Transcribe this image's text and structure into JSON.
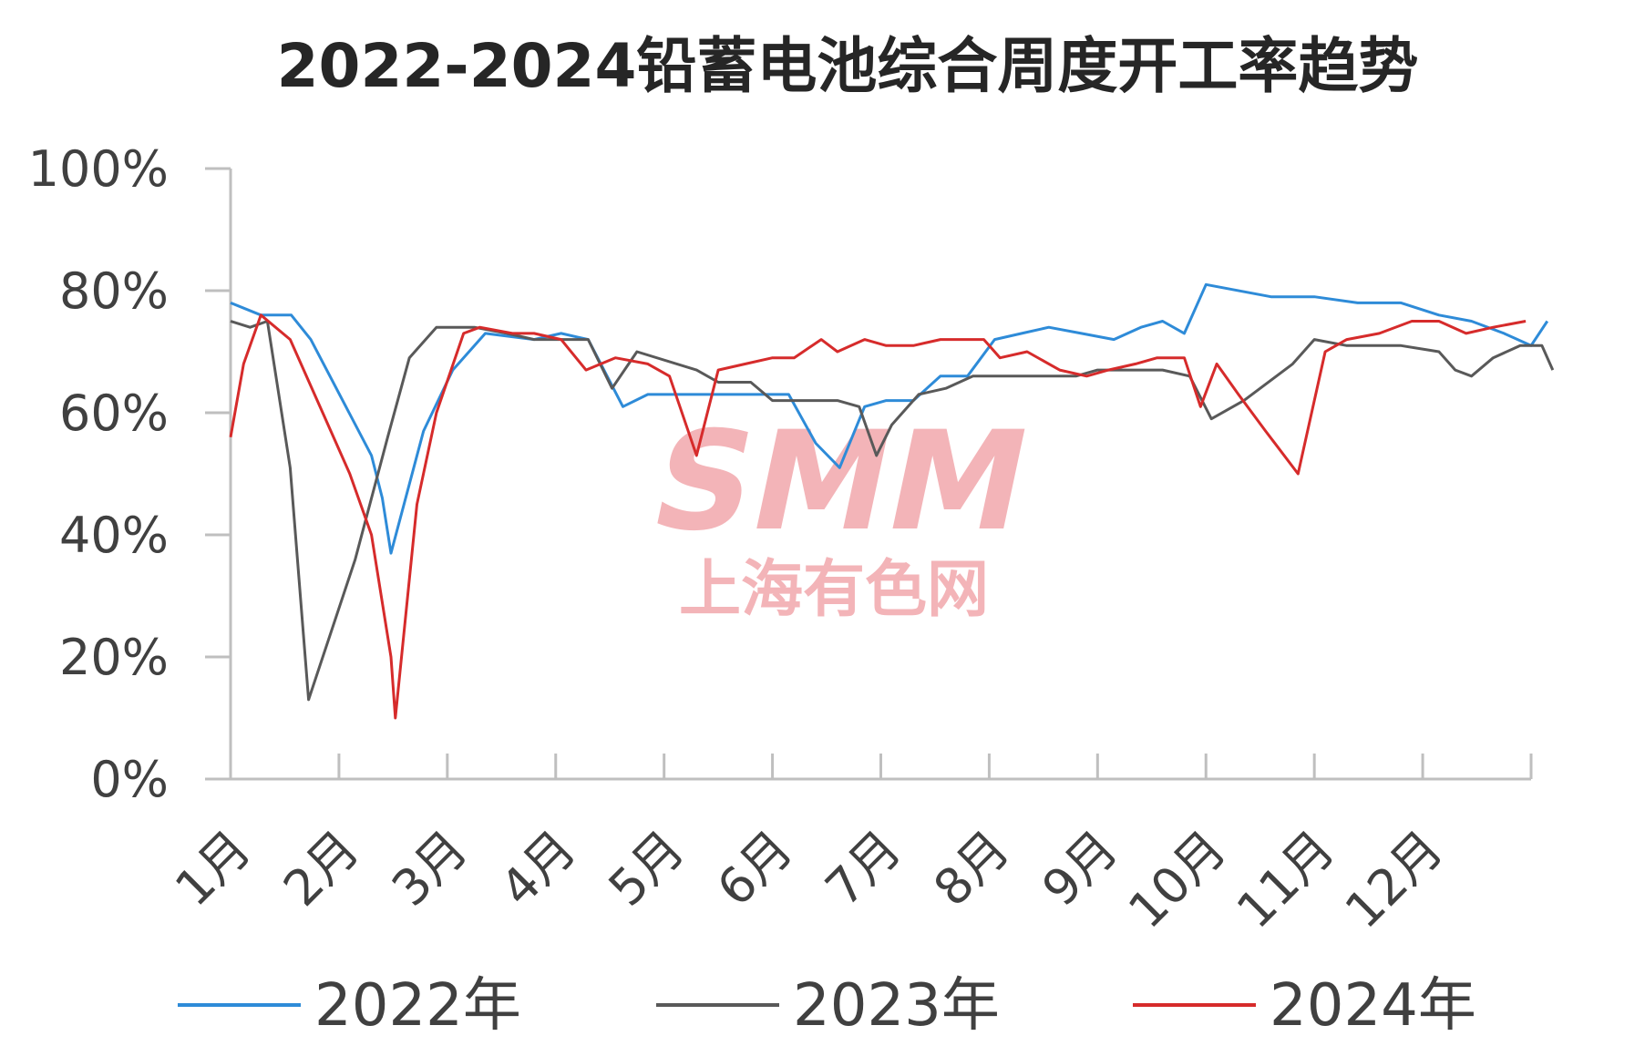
{
  "watermark": {
    "logo": "SMM",
    "text": "上海有色网"
  },
  "chart_data": {
    "type": "line",
    "title": "2022-2024铅蓄电池综合周度开工率趋势",
    "y_ticks": [
      "0%",
      "20%",
      "40%",
      "60%",
      "80%",
      "100%"
    ],
    "ylim": [
      0,
      100
    ],
    "x_range_months": [
      1,
      13
    ],
    "months": [
      "1月",
      "2月",
      "3月",
      "4月",
      "5月",
      "6月",
      "7月",
      "8月",
      "9月",
      "10月",
      "11月",
      "12月"
    ],
    "legend_position": "bottom",
    "series": [
      {
        "name": "2022年",
        "color": "#2e8bd8",
        "points": [
          [
            1.0,
            78
          ],
          [
            1.28,
            76
          ],
          [
            1.56,
            76
          ],
          [
            1.74,
            72
          ],
          [
            2.3,
            53
          ],
          [
            2.4,
            46
          ],
          [
            2.48,
            37
          ],
          [
            2.78,
            57
          ],
          [
            3.05,
            67
          ],
          [
            3.35,
            73
          ],
          [
            3.8,
            72
          ],
          [
            4.05,
            73
          ],
          [
            4.3,
            72
          ],
          [
            4.62,
            61
          ],
          [
            4.85,
            63
          ],
          [
            6.0,
            63
          ],
          [
            6.15,
            63
          ],
          [
            6.4,
            55
          ],
          [
            6.62,
            51
          ],
          [
            6.85,
            61
          ],
          [
            7.05,
            62
          ],
          [
            7.3,
            62
          ],
          [
            7.55,
            66
          ],
          [
            7.8,
            66
          ],
          [
            8.05,
            72
          ],
          [
            8.3,
            73
          ],
          [
            8.55,
            74
          ],
          [
            8.85,
            73
          ],
          [
            9.15,
            72
          ],
          [
            9.4,
            74
          ],
          [
            9.6,
            75
          ],
          [
            9.8,
            73
          ],
          [
            10.0,
            81
          ],
          [
            10.6,
            79
          ],
          [
            11.0,
            79
          ],
          [
            11.4,
            78
          ],
          [
            11.8,
            78
          ],
          [
            12.15,
            76
          ],
          [
            12.45,
            75
          ],
          [
            12.75,
            73
          ],
          [
            13.0,
            71
          ],
          [
            13.15,
            75
          ]
        ]
      },
      {
        "name": "2023年",
        "color": "#595959",
        "points": [
          [
            1.0,
            75
          ],
          [
            1.18,
            74
          ],
          [
            1.34,
            75
          ],
          [
            1.55,
            51
          ],
          [
            1.72,
            13
          ],
          [
            2.15,
            36
          ],
          [
            2.45,
            56
          ],
          [
            2.65,
            69
          ],
          [
            2.9,
            74
          ],
          [
            3.25,
            74
          ],
          [
            3.55,
            73
          ],
          [
            3.8,
            72
          ],
          [
            4.3,
            72
          ],
          [
            4.52,
            64
          ],
          [
            4.75,
            70
          ],
          [
            5.3,
            67
          ],
          [
            5.5,
            65
          ],
          [
            5.8,
            65
          ],
          [
            6.0,
            62
          ],
          [
            6.6,
            62
          ],
          [
            6.8,
            61
          ],
          [
            6.96,
            53
          ],
          [
            7.1,
            58
          ],
          [
            7.35,
            63
          ],
          [
            7.6,
            64
          ],
          [
            7.85,
            66
          ],
          [
            8.1,
            66
          ],
          [
            8.8,
            66
          ],
          [
            9.0,
            67
          ],
          [
            9.6,
            67
          ],
          [
            9.85,
            66
          ],
          [
            10.05,
            59
          ],
          [
            10.35,
            62
          ],
          [
            10.8,
            68
          ],
          [
            11.0,
            72
          ],
          [
            11.3,
            71
          ],
          [
            11.8,
            71
          ],
          [
            12.15,
            70
          ],
          [
            12.3,
            67
          ],
          [
            12.45,
            66
          ],
          [
            12.65,
            69
          ],
          [
            12.9,
            71
          ],
          [
            13.1,
            71
          ],
          [
            13.2,
            67
          ]
        ]
      },
      {
        "name": "2024年",
        "color": "#d62b2b",
        "points": [
          [
            1.0,
            56
          ],
          [
            1.12,
            68
          ],
          [
            1.28,
            76
          ],
          [
            1.55,
            72
          ],
          [
            1.85,
            60
          ],
          [
            2.1,
            50
          ],
          [
            2.3,
            40
          ],
          [
            2.48,
            20
          ],
          [
            2.52,
            10
          ],
          [
            2.72,
            45
          ],
          [
            2.9,
            60
          ],
          [
            3.15,
            73
          ],
          [
            3.3,
            74
          ],
          [
            3.6,
            73
          ],
          [
            3.8,
            73
          ],
          [
            4.05,
            72
          ],
          [
            4.28,
            67
          ],
          [
            4.55,
            69
          ],
          [
            4.85,
            68
          ],
          [
            5.05,
            66
          ],
          [
            5.3,
            53
          ],
          [
            5.5,
            67
          ],
          [
            5.75,
            68
          ],
          [
            6.0,
            69
          ],
          [
            6.2,
            69
          ],
          [
            6.45,
            72
          ],
          [
            6.6,
            70
          ],
          [
            6.85,
            72
          ],
          [
            7.05,
            71
          ],
          [
            7.3,
            71
          ],
          [
            7.55,
            72
          ],
          [
            7.95,
            72
          ],
          [
            8.1,
            69
          ],
          [
            8.35,
            70
          ],
          [
            8.65,
            67
          ],
          [
            8.9,
            66
          ],
          [
            9.1,
            67
          ],
          [
            9.35,
            68
          ],
          [
            9.55,
            69
          ],
          [
            9.8,
            69
          ],
          [
            9.95,
            61
          ],
          [
            10.1,
            68
          ],
          [
            10.3,
            63
          ],
          [
            10.55,
            57
          ],
          [
            10.85,
            50
          ],
          [
            11.1,
            70
          ],
          [
            11.3,
            72
          ],
          [
            11.6,
            73
          ],
          [
            11.9,
            75
          ],
          [
            12.15,
            75
          ],
          [
            12.4,
            73
          ],
          [
            12.65,
            74
          ],
          [
            12.95,
            75
          ]
        ]
      }
    ]
  }
}
